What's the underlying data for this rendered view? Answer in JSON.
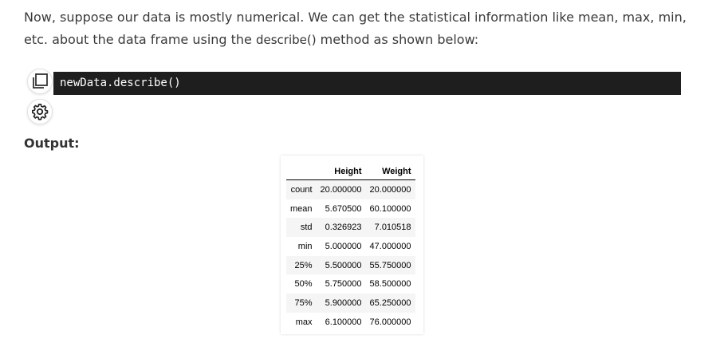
{
  "paragraph": {
    "before": "Now, suppose our data is mostly numerical. We can get the statistical information like mean, max, min, etc. about the data frame using the ",
    "code": "describe()",
    "after": " method as shown below:"
  },
  "code_block": {
    "text": "newData.describe()"
  },
  "icons": {
    "copy": "copy-icon",
    "settings": "gear-icon"
  },
  "output_label": "Output:",
  "table": {
    "headers": [
      "",
      "Height",
      "Weight"
    ],
    "rows": [
      [
        "count",
        "20.000000",
        "20.000000"
      ],
      [
        "mean",
        "5.670500",
        "60.100000"
      ],
      [
        "std",
        "0.326923",
        "7.010518"
      ],
      [
        "min",
        "5.000000",
        "47.000000"
      ],
      [
        "25%",
        "5.500000",
        "55.750000"
      ],
      [
        "50%",
        "5.750000",
        "58.500000"
      ],
      [
        "75%",
        "5.900000",
        "65.250000"
      ],
      [
        "max",
        "6.100000",
        "76.000000"
      ]
    ]
  },
  "colors": {
    "code_bg": "#1e1e1e",
    "code_text": "#ffffff",
    "text": "#3a3a3a"
  }
}
